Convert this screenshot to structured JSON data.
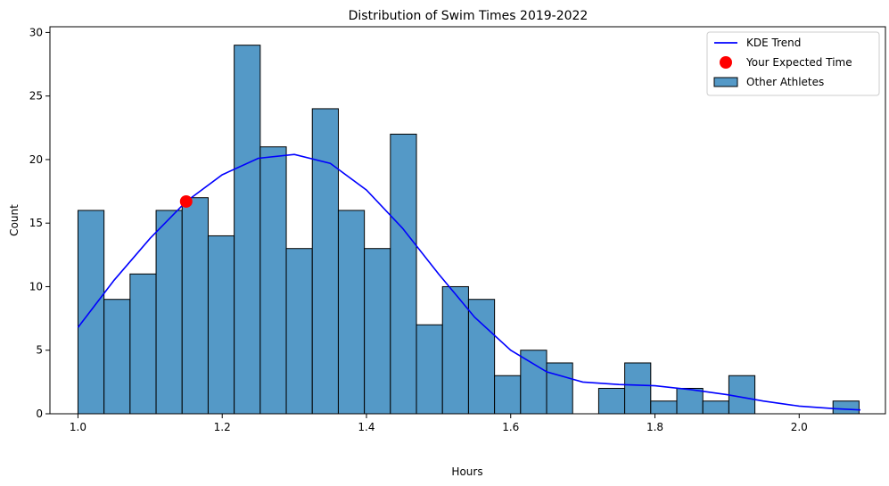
{
  "chart_data": {
    "type": "bar",
    "title": "Distribution of Swim Times 2019-2022",
    "xlabel": "Hours",
    "ylabel": "Count",
    "xlim": [
      0.9611,
      2.1196
    ],
    "ylim": [
      0,
      30.45
    ],
    "xticks": [
      {
        "value": 1.0,
        "label": "1.0"
      },
      {
        "value": 1.2,
        "label": "1.2"
      },
      {
        "value": 1.4,
        "label": "1.4"
      },
      {
        "value": 1.6,
        "label": "1.6"
      },
      {
        "value": 1.8,
        "label": "1.8"
      },
      {
        "value": 2.0,
        "label": "2.0"
      }
    ],
    "yticks": [
      {
        "value": 0,
        "label": "0"
      },
      {
        "value": 5,
        "label": "5"
      },
      {
        "value": 10,
        "label": "10"
      },
      {
        "value": 15,
        "label": "15"
      },
      {
        "value": 20,
        "label": "20"
      },
      {
        "value": 25,
        "label": "25"
      },
      {
        "value": 30,
        "label": "30"
      }
    ],
    "histogram": {
      "name": "Other Athletes",
      "color": "#5499c7",
      "edge_color": "#000000",
      "bin_start": 1.0,
      "bin_width": 0.0361,
      "counts": [
        16,
        9,
        11,
        16,
        17,
        14,
        29,
        21,
        13,
        24,
        16,
        13,
        22,
        7,
        10,
        9,
        3,
        5,
        4,
        0,
        2,
        4,
        1,
        2,
        1,
        3,
        0,
        0,
        0,
        1
      ]
    },
    "kde": {
      "name": "KDE Trend",
      "color": "#0000ff",
      "x": [
        1.0,
        1.05,
        1.1,
        1.15,
        1.2,
        1.25,
        1.3,
        1.35,
        1.4,
        1.45,
        1.5,
        1.55,
        1.6,
        1.65,
        1.7,
        1.75,
        1.8,
        1.85,
        1.9,
        1.95,
        2.0,
        2.05,
        2.085
      ],
      "y": [
        6.8,
        10.5,
        13.8,
        16.7,
        18.8,
        20.1,
        20.4,
        19.7,
        17.6,
        14.6,
        11.0,
        7.6,
        5.0,
        3.3,
        2.5,
        2.3,
        2.2,
        1.9,
        1.5,
        1.0,
        0.6,
        0.4,
        0.3
      ]
    },
    "marker": {
      "name": "Your Expected Time",
      "color": "#ff0000",
      "x": 1.15,
      "y": 16.7
    },
    "legend": {
      "placement": "top-right",
      "items": [
        {
          "label": "KDE Trend",
          "kind": "line",
          "color": "#0000ff"
        },
        {
          "label": "Your Expected Time",
          "kind": "point",
          "color": "#ff0000"
        },
        {
          "label": "Other Athletes",
          "kind": "patch",
          "color": "#5499c7"
        }
      ]
    }
  }
}
